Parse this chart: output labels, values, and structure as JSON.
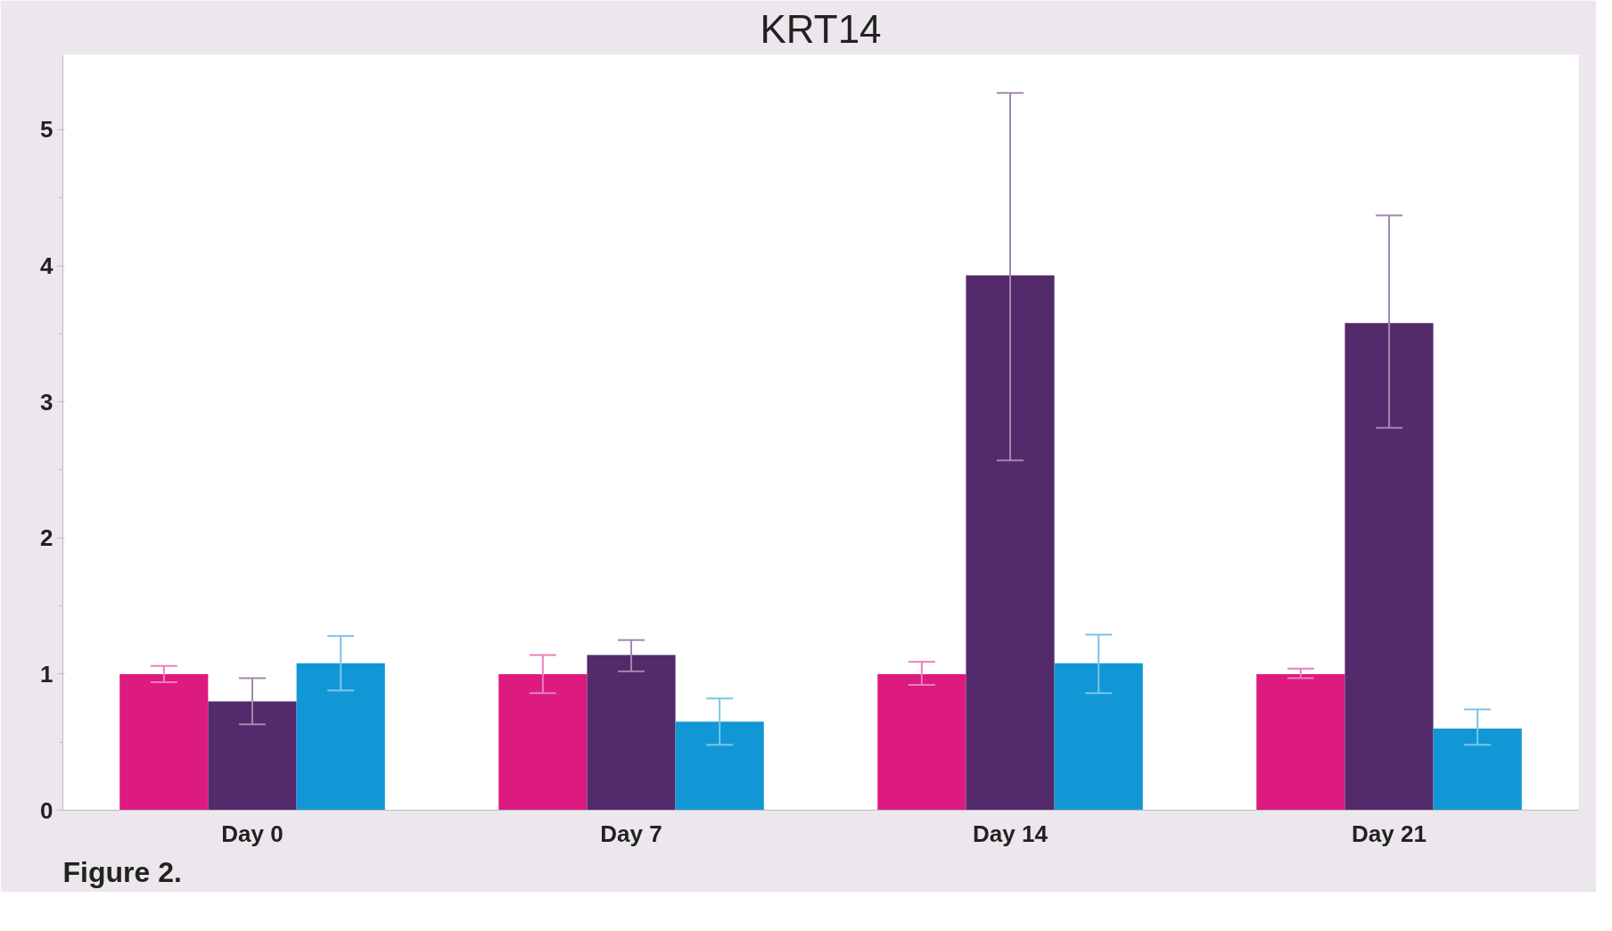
{
  "chart_data": {
    "type": "bar",
    "title": "KRT14",
    "categories": [
      "Day 0",
      "Day 7",
      "Day 14",
      "Day 21"
    ],
    "series": [
      {
        "color": "#dc1a80",
        "values": [
          1.0,
          1.0,
          1.0,
          1.0
        ],
        "errors": [
          [
            0.94,
            1.06
          ],
          [
            0.86,
            1.14
          ],
          [
            0.92,
            1.09
          ],
          [
            0.97,
            1.04
          ]
        ]
      },
      {
        "color": "#532a6b",
        "values": [
          0.8,
          1.14,
          3.93,
          3.58
        ],
        "errors": [
          [
            0.63,
            0.97
          ],
          [
            1.02,
            1.25
          ],
          [
            2.57,
            5.27
          ],
          [
            2.81,
            4.37
          ]
        ]
      },
      {
        "color": "#1197d6",
        "values": [
          1.08,
          0.65,
          1.08,
          0.6
        ],
        "errors": [
          [
            0.88,
            1.28
          ],
          [
            0.48,
            0.82
          ],
          [
            0.86,
            1.29
          ],
          [
            0.48,
            0.74
          ]
        ]
      }
    ],
    "ylim": [
      0,
      5.55
    ],
    "yticks": [
      0,
      1,
      2,
      3,
      4,
      5
    ],
    "grid": false,
    "annotations": [
      "Figure 2."
    ]
  }
}
